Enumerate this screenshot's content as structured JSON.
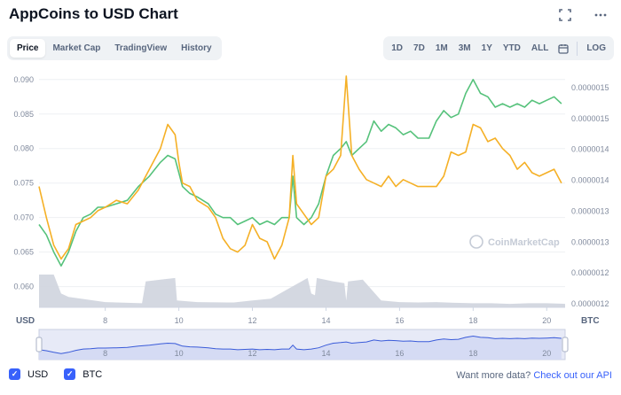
{
  "header": {
    "title": "AppCoins to USD Chart"
  },
  "tabs": [
    {
      "label": "Price",
      "active": true
    },
    {
      "label": "Market Cap",
      "active": false
    },
    {
      "label": "TradingView",
      "active": false
    },
    {
      "label": "History",
      "active": false
    }
  ],
  "ranges": [
    "1D",
    "7D",
    "1M",
    "3M",
    "1Y",
    "YTD",
    "ALL"
  ],
  "log_label": "LOG",
  "watermark": "CoinMarketCap",
  "axis": {
    "left_unit": "USD",
    "right_unit": "BTC"
  },
  "legend": {
    "usd": "USD",
    "btc": "BTC"
  },
  "footer": {
    "prompt": "Want more data?",
    "link": "Check out our API"
  },
  "colors": {
    "usd_line": "#f5b026",
    "btc_line": "#56c27b",
    "volume": "#cfd4de",
    "navigator": "#3a5bd9",
    "accent": "#3861fb"
  },
  "chart_data": {
    "type": "line",
    "x_ticks": [
      "8",
      "10",
      "12",
      "14",
      "16",
      "18",
      "20"
    ],
    "x_range": [
      6.2,
      20.5
    ],
    "left_axis": {
      "ticks": [
        "0.090",
        "0.085",
        "0.080",
        "0.075",
        "0.070",
        "0.065",
        "0.060"
      ],
      "range": [
        0.057,
        0.091
      ]
    },
    "right_axis": {
      "ticks": [
        "0.0000015",
        "0.0000015",
        "0.0000014",
        "0.0000014",
        "0.0000013",
        "0.0000013",
        "0.0000012",
        "0.0000012"
      ]
    },
    "series": [
      {
        "name": "USD",
        "x": [
          6.2,
          6.4,
          6.6,
          6.8,
          7.0,
          7.2,
          7.4,
          7.6,
          7.8,
          8.0,
          8.3,
          8.6,
          8.9,
          9.2,
          9.5,
          9.7,
          9.9,
          10.0,
          10.1,
          10.3,
          10.5,
          10.8,
          11.0,
          11.2,
          11.4,
          11.6,
          11.8,
          12.0,
          12.2,
          12.4,
          12.6,
          12.8,
          13.0,
          13.1,
          13.2,
          13.4,
          13.6,
          13.8,
          14.0,
          14.2,
          14.4,
          14.55,
          14.7,
          14.9,
          15.1,
          15.3,
          15.5,
          15.7,
          15.9,
          16.1,
          16.3,
          16.5,
          16.8,
          17.0,
          17.2,
          17.4,
          17.6,
          17.8,
          18.0,
          18.2,
          18.4,
          18.6,
          18.8,
          19.0,
          19.2,
          19.4,
          19.6,
          19.8,
          20.0,
          20.2,
          20.4
        ],
        "y": [
          0.0745,
          0.07,
          0.066,
          0.064,
          0.0655,
          0.069,
          0.0695,
          0.07,
          0.071,
          0.0715,
          0.0725,
          0.072,
          0.074,
          0.077,
          0.08,
          0.0835,
          0.082,
          0.078,
          0.075,
          0.0745,
          0.0725,
          0.0715,
          0.07,
          0.067,
          0.0655,
          0.065,
          0.066,
          0.069,
          0.067,
          0.0665,
          0.064,
          0.066,
          0.07,
          0.079,
          0.072,
          0.0705,
          0.069,
          0.07,
          0.076,
          0.077,
          0.079,
          0.0905,
          0.079,
          0.077,
          0.0755,
          0.075,
          0.0745,
          0.076,
          0.0745,
          0.0755,
          0.075,
          0.0745,
          0.0745,
          0.0745,
          0.076,
          0.0795,
          0.079,
          0.0795,
          0.0835,
          0.083,
          0.081,
          0.0815,
          0.08,
          0.079,
          0.077,
          0.078,
          0.0765,
          0.076,
          0.0765,
          0.077,
          0.075
        ]
      },
      {
        "name": "BTC",
        "x": [
          6.2,
          6.4,
          6.6,
          6.8,
          7.0,
          7.2,
          7.4,
          7.6,
          7.8,
          8.0,
          8.3,
          8.6,
          8.9,
          9.2,
          9.5,
          9.7,
          9.9,
          10.0,
          10.1,
          10.3,
          10.5,
          10.8,
          11.0,
          11.2,
          11.4,
          11.6,
          11.8,
          12.0,
          12.2,
          12.4,
          12.6,
          12.8,
          13.0,
          13.1,
          13.2,
          13.4,
          13.6,
          13.8,
          14.0,
          14.2,
          14.4,
          14.55,
          14.7,
          14.9,
          15.1,
          15.3,
          15.5,
          15.7,
          15.9,
          16.1,
          16.3,
          16.5,
          16.8,
          17.0,
          17.2,
          17.4,
          17.6,
          17.8,
          18.0,
          18.2,
          18.4,
          18.6,
          18.8,
          19.0,
          19.2,
          19.4,
          19.6,
          19.8,
          20.0,
          20.2,
          20.4
        ],
        "y": [
          0.069,
          0.0675,
          0.065,
          0.063,
          0.065,
          0.068,
          0.07,
          0.0705,
          0.0715,
          0.0715,
          0.072,
          0.0725,
          0.0745,
          0.076,
          0.078,
          0.079,
          0.0785,
          0.0765,
          0.0745,
          0.0735,
          0.073,
          0.072,
          0.0705,
          0.07,
          0.07,
          0.069,
          0.0695,
          0.07,
          0.069,
          0.0695,
          0.069,
          0.07,
          0.07,
          0.076,
          0.07,
          0.069,
          0.07,
          0.072,
          0.076,
          0.079,
          0.08,
          0.081,
          0.079,
          0.08,
          0.081,
          0.084,
          0.0825,
          0.0835,
          0.083,
          0.082,
          0.0825,
          0.0815,
          0.0815,
          0.084,
          0.0855,
          0.0845,
          0.085,
          0.088,
          0.09,
          0.088,
          0.0875,
          0.086,
          0.0865,
          0.086,
          0.0865,
          0.086,
          0.087,
          0.0865,
          0.087,
          0.0875,
          0.0865
        ]
      }
    ],
    "volume": {
      "x": [
        6.2,
        6.6,
        6.8,
        7.0,
        8.0,
        9.0,
        9.1,
        9.5,
        9.9,
        9.95,
        10.5,
        11.5,
        12.0,
        12.5,
        13.0,
        13.5,
        13.6,
        13.7,
        13.75,
        14.2,
        14.5,
        14.55,
        14.6,
        15.0,
        15.5,
        16.0,
        16.5,
        17.0,
        17.5,
        18.0,
        18.5,
        19.0,
        19.5,
        20.0,
        20.5
      ],
      "v": [
        0.95,
        0.95,
        0.4,
        0.3,
        0.15,
        0.12,
        0.75,
        0.8,
        0.85,
        0.2,
        0.15,
        0.14,
        0.2,
        0.25,
        0.55,
        0.85,
        0.4,
        0.35,
        0.85,
        0.75,
        0.7,
        0.2,
        0.75,
        0.8,
        0.2,
        0.15,
        0.14,
        0.15,
        0.13,
        0.12,
        0.12,
        0.1,
        0.12,
        0.12,
        0.1
      ]
    }
  }
}
